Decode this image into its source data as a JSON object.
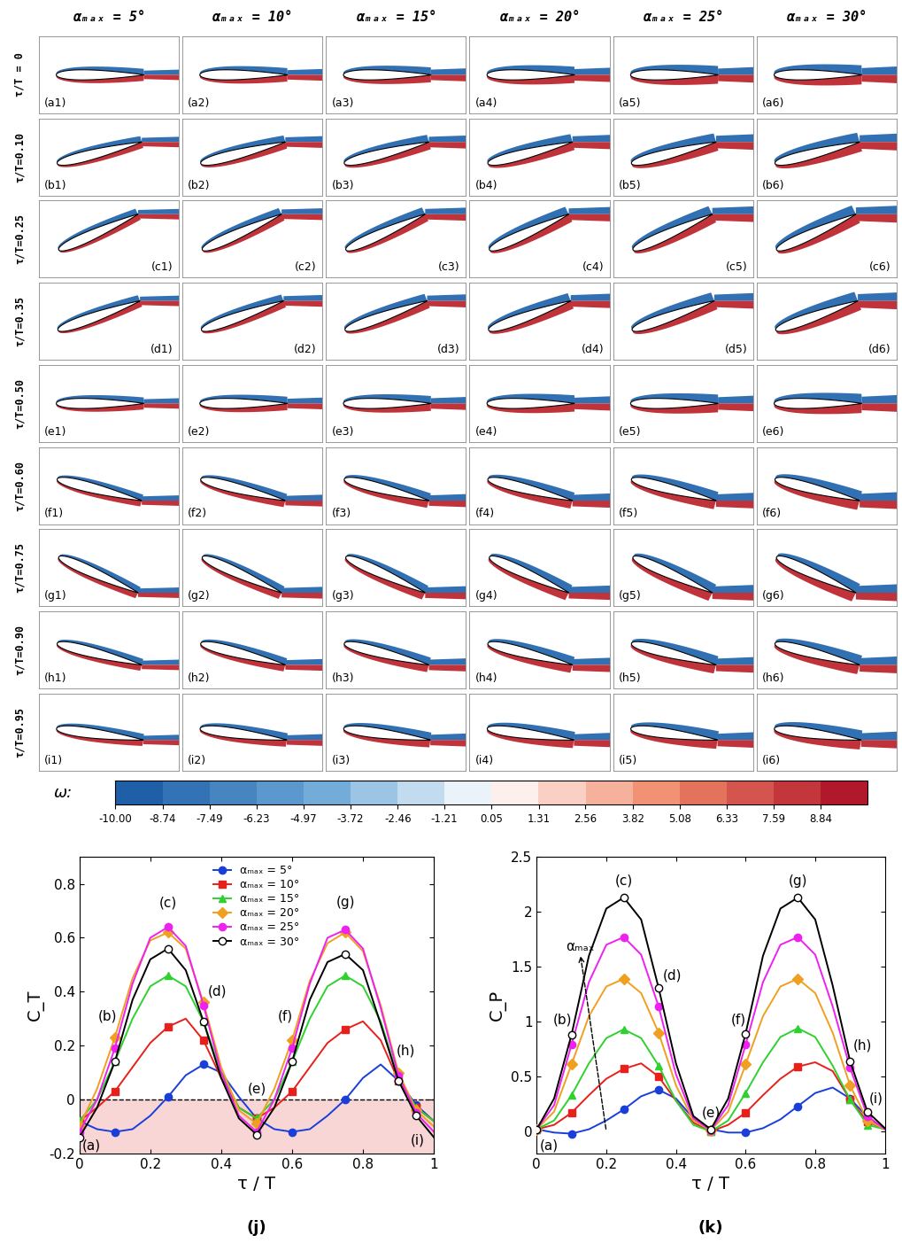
{
  "vorticity_panels": {
    "column_headers": [
      "αₘₐₓ = 5°",
      "αₘₐₓ = 10°",
      "αₘₐₓ = 15°",
      "αₘₐₓ = 20°",
      "αₘₐₓ = 25°",
      "αₘₐₓ = 30°"
    ],
    "row_labels": [
      "τ/T = 0",
      "τ/T=0.10",
      "τ/T=0.25",
      "τ/T=0.35",
      "τ/T=0.50",
      "τ/T=0.60",
      "τ/T=0.75",
      "τ/T=0.90",
      "τ/T=0.95"
    ],
    "row_tau": [
      0,
      0.1,
      0.25,
      0.35,
      0.5,
      0.6,
      0.75,
      0.9,
      0.95
    ],
    "panel_labels": [
      [
        "(a1)",
        "(a2)",
        "(a3)",
        "(a4)",
        "(a5)",
        "(a6)"
      ],
      [
        "(b1)",
        "(b2)",
        "(b3)",
        "(b4)",
        "(b5)",
        "(b6)"
      ],
      [
        "(c1)",
        "(c2)",
        "(c3)",
        "(c4)",
        "(c5)",
        "(c6)"
      ],
      [
        "(d1)",
        "(d2)",
        "(d3)",
        "(d4)",
        "(d5)",
        "(d6)"
      ],
      [
        "(e1)",
        "(e2)",
        "(e3)",
        "(e4)",
        "(e5)",
        "(e6)"
      ],
      [
        "(f1)",
        "(f2)",
        "(f3)",
        "(f4)",
        "(f5)",
        "(f6)"
      ],
      [
        "(g1)",
        "(g2)",
        "(g3)",
        "(g4)",
        "(g5)",
        "(g6)"
      ],
      [
        "(h1)",
        "(h2)",
        "(h3)",
        "(h4)",
        "(h5)",
        "(h6)"
      ],
      [
        "(i1)",
        "(i2)",
        "(i3)",
        "(i4)",
        "(i5)",
        "(i6)"
      ]
    ],
    "colorbar": {
      "label": "ω:",
      "range": [
        -10,
        10.1
      ],
      "ticks": [
        {
          "value": -10.0,
          "label": "-10.00"
        },
        {
          "value": -8.74,
          "label": "-8.74"
        },
        {
          "value": -7.49,
          "label": "-7.49"
        },
        {
          "value": -6.23,
          "label": "-6.23"
        },
        {
          "value": -4.97,
          "label": "-4.97"
        },
        {
          "value": -3.72,
          "label": "-3.72"
        },
        {
          "value": -2.46,
          "label": "-2.46"
        },
        {
          "value": -1.21,
          "label": "-1.21"
        },
        {
          "value": 0.05,
          "label": "0.05"
        },
        {
          "value": 1.31,
          "label": "1.31"
        },
        {
          "value": 2.56,
          "label": "2.56"
        },
        {
          "value": 3.82,
          "label": "3.82"
        },
        {
          "value": 5.08,
          "label": "5.08"
        },
        {
          "value": 6.33,
          "label": "6.33"
        },
        {
          "value": 7.59,
          "label": "7.59"
        },
        {
          "value": 8.84,
          "label": "8.84"
        }
      ]
    }
  },
  "chart_data": [
    {
      "type": "line",
      "title": "(j)",
      "x_label": "τ / T",
      "y_label": "C_T",
      "x": [
        0,
        0.05,
        0.1,
        0.15,
        0.2,
        0.25,
        0.3,
        0.35,
        0.4,
        0.45,
        0.5,
        0.55,
        0.6,
        0.65,
        0.7,
        0.75,
        0.8,
        0.85,
        0.9,
        0.95,
        1
      ],
      "xlim": [
        0,
        1
      ],
      "xticks": [
        0,
        0.2,
        0.4,
        0.6,
        0.8,
        1
      ],
      "ylim": [
        -0.2,
        0.9
      ],
      "yticks": [
        -0.2,
        0,
        0.2,
        0.4,
        0.6,
        0.8
      ],
      "reference_line": 0,
      "legend": "upper center",
      "series": [
        {
          "name": "αₘₐₓ = 5°",
          "color": "#1a3fd9",
          "marker": "circle",
          "values": [
            -0.08,
            -0.11,
            -0.12,
            -0.11,
            -0.06,
            0.01,
            0.09,
            0.13,
            0.1,
            0.01,
            -0.07,
            -0.11,
            -0.12,
            -0.11,
            -0.06,
            0.0,
            0.08,
            0.13,
            0.07,
            -0.02,
            -0.08
          ]
        },
        {
          "name": "αₘₐₓ = 10°",
          "color": "#e8201c",
          "marker": "square",
          "values": [
            -0.08,
            -0.03,
            0.03,
            0.12,
            0.21,
            0.27,
            0.3,
            0.22,
            0.08,
            -0.03,
            -0.07,
            -0.03,
            0.03,
            0.12,
            0.21,
            0.26,
            0.29,
            0.22,
            0.07,
            -0.03,
            -0.08
          ]
        },
        {
          "name": "αₘₐₓ = 15°",
          "color": "#2fd12f",
          "marker": "triangle",
          "values": [
            -0.08,
            0.0,
            0.14,
            0.3,
            0.42,
            0.46,
            0.42,
            0.29,
            0.1,
            -0.03,
            -0.07,
            0.0,
            0.14,
            0.3,
            0.42,
            0.46,
            0.42,
            0.29,
            0.08,
            -0.03,
            -0.08
          ]
        },
        {
          "name": "αₘₐₓ = 20°",
          "color": "#f0a020",
          "marker": "diamond",
          "values": [
            -0.1,
            0.04,
            0.23,
            0.45,
            0.59,
            0.62,
            0.56,
            0.36,
            0.12,
            -0.04,
            -0.09,
            0.04,
            0.22,
            0.44,
            0.58,
            0.62,
            0.55,
            0.35,
            0.1,
            -0.04,
            -0.1
          ]
        },
        {
          "name": "αₘₐₓ = 25°",
          "color": "#ee22ee",
          "marker": "circle",
          "values": [
            -0.12,
            0.0,
            0.19,
            0.43,
            0.6,
            0.64,
            0.57,
            0.35,
            0.1,
            -0.06,
            -0.12,
            0.0,
            0.19,
            0.43,
            0.6,
            0.63,
            0.56,
            0.34,
            0.09,
            -0.05,
            -0.12
          ]
        },
        {
          "name": "αₘₐₓ = 30°",
          "color": "#000000",
          "marker": "hollow_circle",
          "values": [
            -0.14,
            -0.03,
            0.14,
            0.37,
            0.52,
            0.56,
            0.48,
            0.29,
            0.08,
            -0.07,
            -0.13,
            -0.03,
            0.14,
            0.37,
            0.51,
            0.54,
            0.48,
            0.28,
            0.07,
            -0.06,
            -0.14
          ]
        }
      ],
      "annotations": [
        {
          "text": "(a)",
          "x": 0.035,
          "y": -0.17
        },
        {
          "text": "(b)",
          "x": 0.08,
          "y": 0.31
        },
        {
          "text": "(c)",
          "x": 0.25,
          "y": 0.73
        },
        {
          "text": "(d)",
          "x": 0.39,
          "y": 0.4
        },
        {
          "text": "(e)",
          "x": 0.5,
          "y": 0.04
        },
        {
          "text": "(f)",
          "x": 0.58,
          "y": 0.31
        },
        {
          "text": "(g)",
          "x": 0.75,
          "y": 0.73
        },
        {
          "text": "(h)",
          "x": 0.92,
          "y": 0.18
        },
        {
          "text": "(i)",
          "x": 0.955,
          "y": -0.15
        }
      ]
    },
    {
      "type": "line",
      "title": "(k)",
      "x_label": "τ / T",
      "y_label": "C_P",
      "x": [
        0,
        0.05,
        0.1,
        0.15,
        0.2,
        0.25,
        0.3,
        0.35,
        0.4,
        0.45,
        0.5,
        0.55,
        0.6,
        0.65,
        0.7,
        0.75,
        0.8,
        0.85,
        0.9,
        0.95,
        1
      ],
      "xlim": [
        0,
        1
      ],
      "xticks": [
        0,
        0.2,
        0.4,
        0.6,
        0.8,
        1
      ],
      "ylim": [
        -0.2,
        2.5
      ],
      "yticks": [
        0,
        0.5,
        1,
        1.5,
        2,
        2.5
      ],
      "series": [
        {
          "name": "αₘₐₓ = 5°",
          "color": "#1a3fd9",
          "marker": "circle",
          "values": [
            0.02,
            -0.01,
            -0.02,
            0.02,
            0.1,
            0.2,
            0.32,
            0.38,
            0.3,
            0.12,
            0.02,
            -0.01,
            -0.01,
            0.03,
            0.11,
            0.23,
            0.35,
            0.4,
            0.3,
            0.13,
            0.02
          ]
        },
        {
          "name": "αₘₐₓ = 10°",
          "color": "#e8201c",
          "marker": "square",
          "values": [
            0.02,
            0.06,
            0.17,
            0.33,
            0.48,
            0.57,
            0.62,
            0.5,
            0.28,
            0.08,
            0.0,
            0.06,
            0.17,
            0.33,
            0.48,
            0.59,
            0.63,
            0.55,
            0.29,
            0.09,
            0.02
          ]
        },
        {
          "name": "αₘₐₓ = 15°",
          "color": "#2fd12f",
          "marker": "triangle",
          "values": [
            0.02,
            0.1,
            0.33,
            0.62,
            0.85,
            0.93,
            0.85,
            0.6,
            0.28,
            0.06,
            0.0,
            0.1,
            0.35,
            0.63,
            0.86,
            0.94,
            0.86,
            0.6,
            0.29,
            0.06,
            0.02
          ]
        },
        {
          "name": "αₘₐₓ = 20°",
          "color": "#f0a020",
          "marker": "diamond",
          "values": [
            0.02,
            0.18,
            0.61,
            1.05,
            1.32,
            1.39,
            1.26,
            0.9,
            0.42,
            0.1,
            0.01,
            0.18,
            0.61,
            1.05,
            1.32,
            1.39,
            1.26,
            0.9,
            0.42,
            0.1,
            0.02
          ]
        },
        {
          "name": "αₘₐₓ = 25°",
          "color": "#ee22ee",
          "marker": "circle",
          "values": [
            0.02,
            0.24,
            0.79,
            1.36,
            1.7,
            1.77,
            1.61,
            1.14,
            0.52,
            0.12,
            0.01,
            0.24,
            0.79,
            1.36,
            1.7,
            1.77,
            1.61,
            1.14,
            0.58,
            0.14,
            0.02
          ]
        },
        {
          "name": "αₘₐₓ = 30°",
          "color": "#000000",
          "marker": "hollow_circle",
          "values": [
            0.02,
            0.3,
            0.88,
            1.6,
            2.03,
            2.13,
            1.93,
            1.31,
            0.62,
            0.14,
            0.02,
            0.3,
            0.89,
            1.6,
            2.03,
            2.13,
            1.93,
            1.33,
            0.64,
            0.18,
            0.03
          ]
        }
      ],
      "annotations": [
        {
          "text": "(a)",
          "x": 0.035,
          "y": -0.13
        },
        {
          "text": "(b)",
          "x": 0.075,
          "y": 1.02
        },
        {
          "text": "(c)",
          "x": 0.25,
          "y": 2.28
        },
        {
          "text": "(d)",
          "x": 0.39,
          "y": 1.42
        },
        {
          "text": "(e)",
          "x": 0.5,
          "y": 0.17
        },
        {
          "text": "(f)",
          "x": 0.58,
          "y": 1.02
        },
        {
          "text": "(g)",
          "x": 0.75,
          "y": 2.28
        },
        {
          "text": "(h)",
          "x": 0.935,
          "y": 0.78
        },
        {
          "text": "(i)",
          "x": 0.975,
          "y": 0.3
        },
        {
          "text": "αₘₐₓ",
          "x": 0.125,
          "y": 1.62,
          "arrow_from": [
            0.2,
            0.0
          ]
        }
      ]
    }
  ]
}
